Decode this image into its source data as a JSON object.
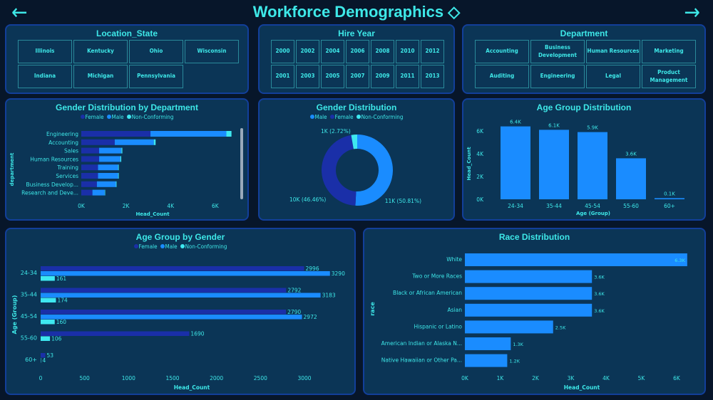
{
  "header": {
    "title": "Workforce Demographics",
    "back_icon": "arrow-left-icon",
    "forward_icon": "arrow-right-icon",
    "eraser_icon": "eraser-icon"
  },
  "colors": {
    "female": "#1a2fa8",
    "male": "#1a8cff",
    "non_conforming": "#3ee8f0",
    "accent": "#3ee8e8"
  },
  "slicers": {
    "location": {
      "title": "Location_State",
      "items": [
        "Illinois",
        "Kentucky",
        "Ohio",
        "Wisconsin",
        "Indiana",
        "Michigan",
        "Pennsylvania"
      ]
    },
    "hire_year": {
      "title": "Hire Year",
      "items": [
        "2000",
        "2002",
        "2004",
        "2006",
        "2008",
        "2010",
        "2012",
        "2001",
        "2003",
        "2005",
        "2007",
        "2009",
        "2011",
        "2013"
      ]
    },
    "department": {
      "title": "Department",
      "items": [
        "Accounting",
        "Business Development",
        "Human Resources",
        "Marketing",
        "Auditing",
        "Engineering",
        "Legal",
        "Product Management"
      ]
    }
  },
  "legend": {
    "female": "Female",
    "male": "Male",
    "nc": "Non-Conforming"
  },
  "chart_data": [
    {
      "id": "gender_by_dept",
      "type": "bar",
      "orientation": "horizontal",
      "stacked": true,
      "title": "Gender Distribution by Department",
      "xlabel": "Head_Count",
      "ylabel": "department",
      "xticks": [
        "0K",
        "2K",
        "4K",
        "6K"
      ],
      "xlim": [
        0,
        7000
      ],
      "categories": [
        "Engineering",
        "Accounting",
        "Sales",
        "Human Resources",
        "Training",
        "Services",
        "Business Develop...",
        "Research and Deve..."
      ],
      "series": [
        {
          "name": "Female",
          "values": [
            3100,
            1500,
            800,
            800,
            750,
            750,
            700,
            500
          ]
        },
        {
          "name": "Male",
          "values": [
            3400,
            1750,
            1000,
            950,
            900,
            900,
            850,
            550
          ]
        },
        {
          "name": "Non-Conforming",
          "values": [
            230,
            80,
            40,
            40,
            30,
            30,
            30,
            20
          ]
        }
      ],
      "legend": "top"
    },
    {
      "id": "gender_dist",
      "type": "pie",
      "donut": true,
      "title": "Gender Distribution",
      "categories": [
        "Male",
        "Female",
        "Non-Conforming"
      ],
      "values": [
        50.81,
        46.46,
        2.72
      ],
      "labels": [
        "11K (50.81%)",
        "10K (46.46%)",
        "1K (2.72%)"
      ],
      "legend": "top"
    },
    {
      "id": "age_dist",
      "type": "bar",
      "title": "Age Group Distribution",
      "xlabel": "Age (Group)",
      "ylabel": "Head_Count",
      "yticks": [
        "0K",
        "2K",
        "4K",
        "6K"
      ],
      "ylim": [
        0,
        7000
      ],
      "categories": [
        "24-34",
        "35-44",
        "45-54",
        "55-60",
        "60+"
      ],
      "values": [
        6400,
        6100,
        5900,
        3600,
        100
      ],
      "labels": [
        "6.4K",
        "6.1K",
        "5.9K",
        "3.6K",
        "0.1K"
      ]
    },
    {
      "id": "age_by_gender",
      "type": "bar",
      "orientation": "horizontal",
      "title": "Age Group by Gender",
      "xlabel": "Head_Count",
      "ylabel": "Age (Group)",
      "xticks": [
        "0",
        "500",
        "1000",
        "1500",
        "2000",
        "2500",
        "3000"
      ],
      "xlim": [
        0,
        3400
      ],
      "categories": [
        "24-34",
        "35-44",
        "45-54",
        "55-60",
        "60+"
      ],
      "series": [
        {
          "name": "Female",
          "values": [
            2996,
            2792,
            2790,
            1690,
            53
          ]
        },
        {
          "name": "Male",
          "values": [
            3290,
            3183,
            2972,
            null,
            null
          ]
        },
        {
          "name": "Non-Conforming",
          "values": [
            161,
            174,
            160,
            106,
            4
          ]
        }
      ],
      "legend": "top"
    },
    {
      "id": "race_dist",
      "type": "bar",
      "orientation": "horizontal",
      "title": "Race Distribution",
      "xlabel": "Head_Count",
      "ylabel": "race",
      "xticks": [
        "0K",
        "1K",
        "2K",
        "3K",
        "4K",
        "5K",
        "6K"
      ],
      "xlim": [
        0,
        6000
      ],
      "categories": [
        "White",
        "Two or More Races",
        "Black or African American",
        "Asian",
        "Hispanic or Latino",
        "American Indian or Alaska N...",
        "Native Hawaiian or Other Pa..."
      ],
      "values": [
        6300,
        3600,
        3600,
        3600,
        2500,
        1300,
        1200
      ],
      "labels": [
        "6.3K",
        "3.6K",
        "3.6K",
        "3.6K",
        "2.5K",
        "1.3K",
        "1.2K"
      ]
    }
  ]
}
